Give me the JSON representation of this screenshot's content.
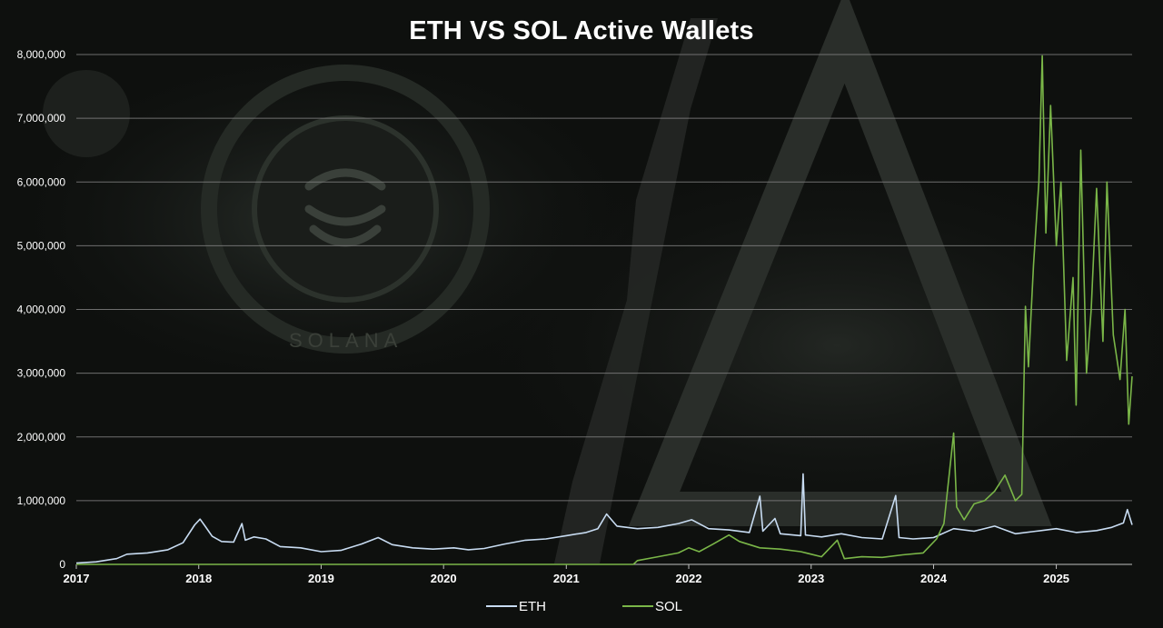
{
  "background": {
    "logo_text": "SOLANA"
  },
  "colors": {
    "background": "#0c0d0c",
    "eth": "#c8dcf2",
    "sol": "#7ab648",
    "grid": "#7f7f7f",
    "text": "#ffffff"
  },
  "chart_data": {
    "type": "line",
    "title": "ETH VS SOL Active Wallets",
    "xlabel": "",
    "ylabel": "",
    "ylim": [
      0,
      8000000
    ],
    "xlim": [
      "2017-01-01",
      "2025-08-15"
    ],
    "yticks": [
      0,
      1000000,
      2000000,
      3000000,
      4000000,
      5000000,
      6000000,
      7000000,
      8000000
    ],
    "ytick_labels": [
      "0",
      "1,000,000",
      "2,000,000",
      "3,000,000",
      "4,000,000",
      "5,000,000",
      "6,000,000",
      "7,000,000",
      "8,000,000"
    ],
    "xtick_labels": [
      "2017",
      "2018",
      "2019",
      "2020",
      "2021",
      "2022",
      "2023",
      "2024",
      "2025"
    ],
    "grid": "horizontal",
    "legend_position": "bottom",
    "series": [
      {
        "name": "ETH",
        "color": "#c8dcf2",
        "points": [
          [
            "2017-01-01",
            20000
          ],
          [
            "2017-03-01",
            40000
          ],
          [
            "2017-05-01",
            90000
          ],
          [
            "2017-06-01",
            160000
          ],
          [
            "2017-08-01",
            180000
          ],
          [
            "2017-10-01",
            230000
          ],
          [
            "2017-11-15",
            340000
          ],
          [
            "2017-12-20",
            620000
          ],
          [
            "2018-01-05",
            710000
          ],
          [
            "2018-01-20",
            600000
          ],
          [
            "2018-02-10",
            440000
          ],
          [
            "2018-03-10",
            360000
          ],
          [
            "2018-04-15",
            350000
          ],
          [
            "2018-05-10",
            640000
          ],
          [
            "2018-05-20",
            380000
          ],
          [
            "2018-06-15",
            430000
          ],
          [
            "2018-07-20",
            400000
          ],
          [
            "2018-09-01",
            280000
          ],
          [
            "2018-11-01",
            260000
          ],
          [
            "2019-01-01",
            200000
          ],
          [
            "2019-03-01",
            220000
          ],
          [
            "2019-05-01",
            320000
          ],
          [
            "2019-06-20",
            420000
          ],
          [
            "2019-08-01",
            310000
          ],
          [
            "2019-10-01",
            260000
          ],
          [
            "2019-12-01",
            240000
          ],
          [
            "2020-02-01",
            260000
          ],
          [
            "2020-03-15",
            230000
          ],
          [
            "2020-05-01",
            250000
          ],
          [
            "2020-07-01",
            320000
          ],
          [
            "2020-09-01",
            380000
          ],
          [
            "2020-11-01",
            400000
          ],
          [
            "2021-01-01",
            450000
          ],
          [
            "2021-03-01",
            500000
          ],
          [
            "2021-04-05",
            560000
          ],
          [
            "2021-05-01",
            790000
          ],
          [
            "2021-06-01",
            600000
          ],
          [
            "2021-08-01",
            560000
          ],
          [
            "2021-10-01",
            580000
          ],
          [
            "2021-12-01",
            640000
          ],
          [
            "2022-01-10",
            700000
          ],
          [
            "2022-03-01",
            560000
          ],
          [
            "2022-05-01",
            540000
          ],
          [
            "2022-07-01",
            500000
          ],
          [
            "2022-08-01",
            1070000
          ],
          [
            "2022-08-10",
            520000
          ],
          [
            "2022-09-15",
            720000
          ],
          [
            "2022-10-01",
            480000
          ],
          [
            "2022-12-01",
            450000
          ],
          [
            "2022-12-08",
            1420000
          ],
          [
            "2022-12-15",
            460000
          ],
          [
            "2023-02-01",
            430000
          ],
          [
            "2023-04-01",
            480000
          ],
          [
            "2023-06-01",
            420000
          ],
          [
            "2023-08-01",
            400000
          ],
          [
            "2023-09-10",
            1080000
          ],
          [
            "2023-09-20",
            420000
          ],
          [
            "2023-11-01",
            400000
          ],
          [
            "2024-01-01",
            420000
          ],
          [
            "2024-03-01",
            560000
          ],
          [
            "2024-05-01",
            520000
          ],
          [
            "2024-07-01",
            600000
          ],
          [
            "2024-09-01",
            480000
          ],
          [
            "2024-11-01",
            520000
          ],
          [
            "2025-01-01",
            560000
          ],
          [
            "2025-03-01",
            500000
          ],
          [
            "2025-05-01",
            530000
          ],
          [
            "2025-06-15",
            580000
          ],
          [
            "2025-07-20",
            650000
          ],
          [
            "2025-08-01",
            860000
          ],
          [
            "2025-08-15",
            620000
          ]
        ]
      },
      {
        "name": "SOL",
        "color": "#7ab648",
        "points": [
          [
            "2017-01-01",
            0
          ],
          [
            "2021-07-20",
            0
          ],
          [
            "2021-08-01",
            60000
          ],
          [
            "2021-10-01",
            120000
          ],
          [
            "2021-12-01",
            180000
          ],
          [
            "2022-01-01",
            260000
          ],
          [
            "2022-02-01",
            200000
          ],
          [
            "2022-03-15",
            320000
          ],
          [
            "2022-05-01",
            460000
          ],
          [
            "2022-06-01",
            360000
          ],
          [
            "2022-08-01",
            260000
          ],
          [
            "2022-10-01",
            240000
          ],
          [
            "2022-12-01",
            200000
          ],
          [
            "2023-02-01",
            120000
          ],
          [
            "2023-03-20",
            380000
          ],
          [
            "2023-04-10",
            90000
          ],
          [
            "2023-06-01",
            120000
          ],
          [
            "2023-08-01",
            110000
          ],
          [
            "2023-10-01",
            150000
          ],
          [
            "2023-12-01",
            180000
          ],
          [
            "2024-01-10",
            400000
          ],
          [
            "2024-02-01",
            640000
          ],
          [
            "2024-03-01",
            2060000
          ],
          [
            "2024-03-10",
            900000
          ],
          [
            "2024-04-01",
            700000
          ],
          [
            "2024-05-01",
            950000
          ],
          [
            "2024-06-01",
            1000000
          ],
          [
            "2024-07-01",
            1150000
          ],
          [
            "2024-08-01",
            1400000
          ],
          [
            "2024-09-01",
            1000000
          ],
          [
            "2024-09-20",
            1100000
          ],
          [
            "2024-10-01",
            4050000
          ],
          [
            "2024-10-10",
            3100000
          ],
          [
            "2024-10-25",
            4700000
          ],
          [
            "2024-11-10",
            6000000
          ],
          [
            "2024-11-20",
            7980000
          ],
          [
            "2024-12-01",
            5200000
          ],
          [
            "2024-12-15",
            7200000
          ],
          [
            "2025-01-01",
            5000000
          ],
          [
            "2025-01-15",
            6000000
          ],
          [
            "2025-02-01",
            3200000
          ],
          [
            "2025-02-20",
            4500000
          ],
          [
            "2025-03-01",
            2500000
          ],
          [
            "2025-03-15",
            6500000
          ],
          [
            "2025-04-01",
            3000000
          ],
          [
            "2025-04-15",
            4000000
          ],
          [
            "2025-05-01",
            5900000
          ],
          [
            "2025-05-20",
            3500000
          ],
          [
            "2025-06-01",
            6000000
          ],
          [
            "2025-06-20",
            3600000
          ],
          [
            "2025-07-10",
            2900000
          ],
          [
            "2025-07-25",
            4000000
          ],
          [
            "2025-08-05",
            2200000
          ],
          [
            "2025-08-15",
            2950000
          ]
        ]
      }
    ]
  }
}
